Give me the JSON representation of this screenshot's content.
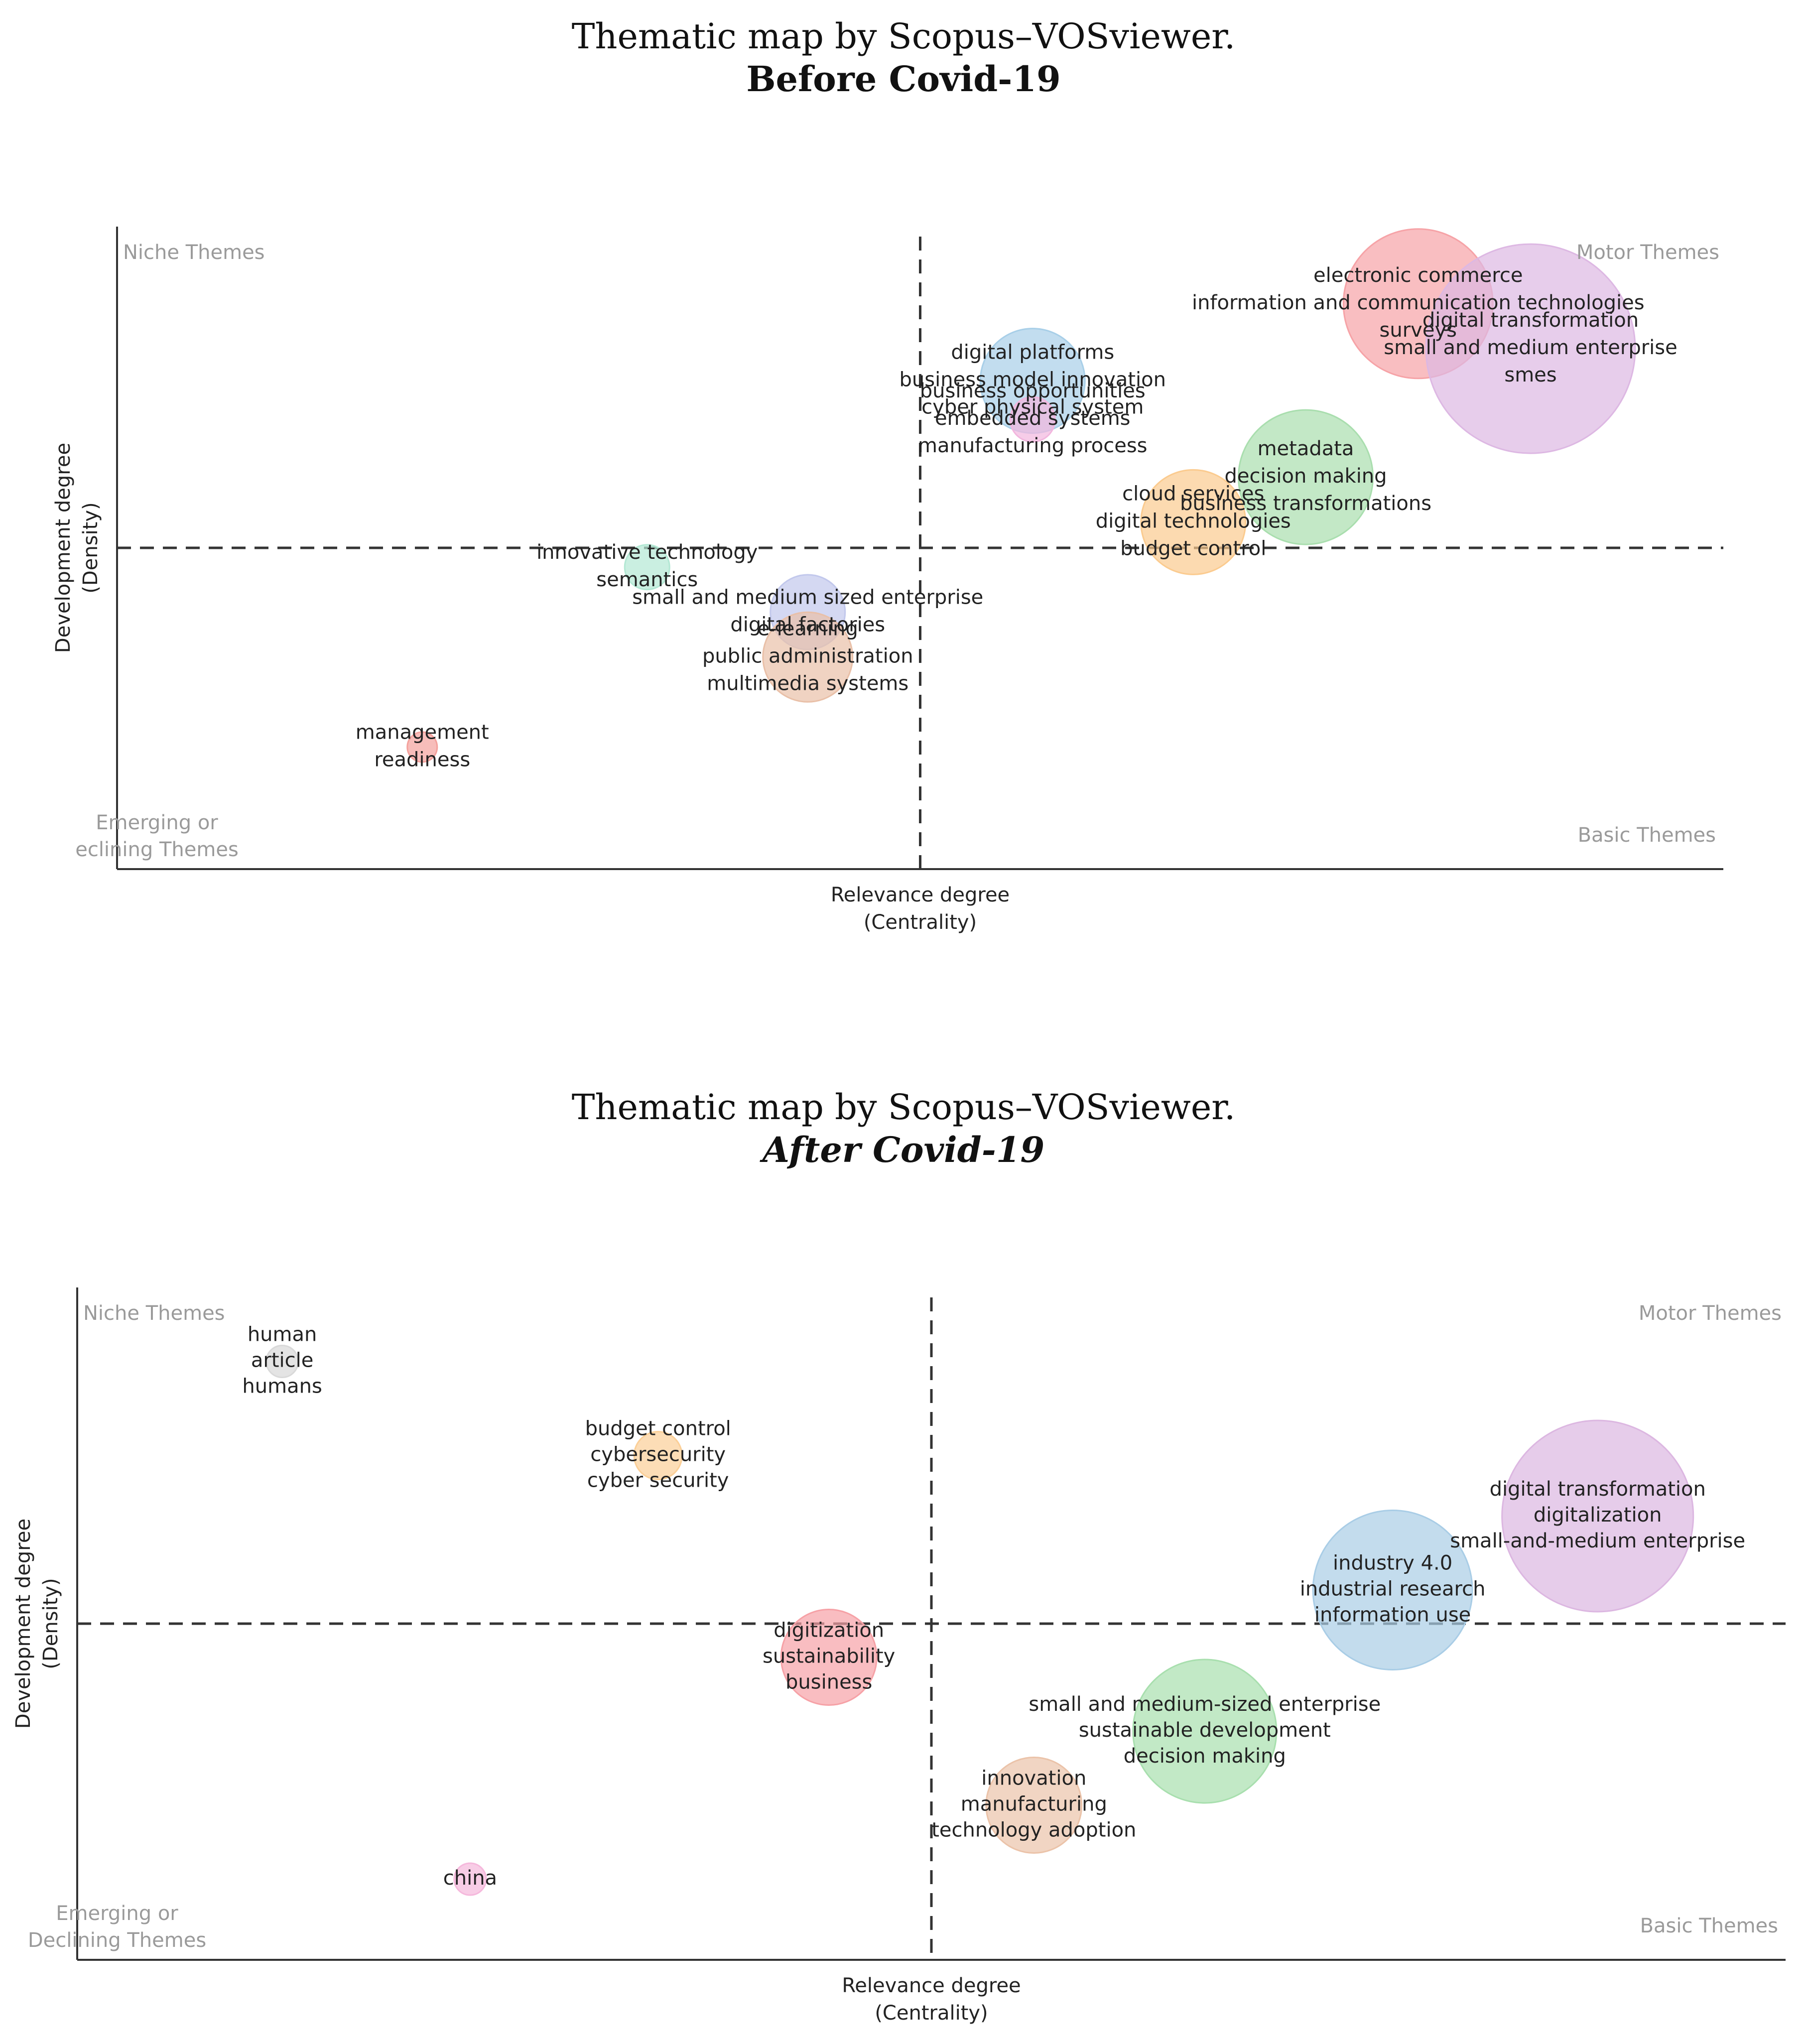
{
  "chart_data": [
    {
      "type": "scatter",
      "title": "Thematic map by Scopus–VOSviewer.",
      "subtitle": "Before Covid-19",
      "xlabel": [
        "Relevance degree",
        "(Centrality)"
      ],
      "ylabel": [
        "Development degree",
        "(Density)"
      ],
      "xlim": [
        0,
        100
      ],
      "ylim": [
        0,
        100
      ],
      "quadrant_split": {
        "x": 50,
        "y": 50
      },
      "quadrant_labels": {
        "top_left": [
          "Niche Themes"
        ],
        "top_right": [
          "Motor Themes"
        ],
        "bottom_left": [
          "Emerging or",
          "eclining Themes"
        ],
        "bottom_right": [
          "Basic Themes"
        ]
      },
      "clusters": [
        {
          "x": 81,
          "y": 88,
          "size": 10,
          "color": "#f6a3a7",
          "labels": [
            "electronic commerce",
            "information and communication technologies",
            "surveys"
          ]
        },
        {
          "x": 88,
          "y": 81,
          "size": 14,
          "color": "#ddb8e3",
          "labels": [
            "digital transformation",
            "small and medium enterprise",
            "smes"
          ]
        },
        {
          "x": 57,
          "y": 76,
          "size": 7,
          "color": "#a8cfe8",
          "labels": [
            "digital platforms",
            "business model innovation",
            "cyber physical system"
          ]
        },
        {
          "x": 57,
          "y": 70,
          "size": 3,
          "color": "#f2b6de",
          "labels": [
            "business opportunities",
            "embedded systems",
            "manufacturing process"
          ]
        },
        {
          "x": 74,
          "y": 61,
          "size": 9,
          "color": "#a9deae",
          "labels": [
            "metadata",
            "decision making",
            "business transformations"
          ]
        },
        {
          "x": 67,
          "y": 54,
          "size": 7,
          "color": "#fbcb8f",
          "labels": [
            "cloud services",
            "digital technologies",
            "budget control"
          ]
        },
        {
          "x": 33,
          "y": 47,
          "size": 3,
          "color": "#b3e8d4",
          "labels": [
            "innovative technology",
            "semantics"
          ]
        },
        {
          "x": 43,
          "y": 40,
          "size": 5,
          "color": "#c2c8ec",
          "labels": [
            "small and medium sized enterprise",
            "digital factories"
          ]
        },
        {
          "x": 43,
          "y": 33,
          "size": 6,
          "color": "#e9c0a8",
          "labels": [
            "e-learning",
            "public administration",
            "multimedia systems"
          ]
        },
        {
          "x": 19,
          "y": 19,
          "size": 2,
          "color": "#f4a19c",
          "labels": [
            "management",
            "readiness"
          ]
        }
      ]
    },
    {
      "type": "scatter",
      "title": "Thematic map by Scopus–VOSviewer.",
      "subtitle": "After Covid-19",
      "xlabel": [
        "Relevance degree",
        "(Centrality)"
      ],
      "ylabel": [
        "Development degree",
        "(Density)"
      ],
      "xlim": [
        0,
        100
      ],
      "ylim": [
        0,
        100
      ],
      "quadrant_split": {
        "x": 50,
        "y": 50
      },
      "quadrant_labels": {
        "top_left": [
          "Niche Themes"
        ],
        "top_right": [
          "Motor Themes"
        ],
        "bottom_left": [
          "Emerging or",
          "Declining Themes"
        ],
        "bottom_right": [
          "Basic Themes"
        ]
      },
      "clusters": [
        {
          "x": 12,
          "y": 89,
          "size": 2,
          "color": "#d9d9d9",
          "labels": [
            "human",
            "article",
            "humans"
          ]
        },
        {
          "x": 34,
          "y": 75,
          "size": 3,
          "color": "#fbcf97",
          "labels": [
            "budget control",
            "cybersecurity",
            "cyber security"
          ]
        },
        {
          "x": 44,
          "y": 45,
          "size": 6,
          "color": "#f6a1a6",
          "labels": [
            "digitization",
            "sustainability",
            "business"
          ]
        },
        {
          "x": 89,
          "y": 66,
          "size": 12,
          "color": "#dcb7e1",
          "labels": [
            "digital transformation",
            "digitalization",
            "small-and-medium enterprise"
          ]
        },
        {
          "x": 77,
          "y": 55,
          "size": 10,
          "color": "#a9cde6",
          "labels": [
            "industry 4.0",
            "industrial research",
            "information use"
          ]
        },
        {
          "x": 66,
          "y": 34,
          "size": 9,
          "color": "#a8dfae",
          "labels": [
            "small and medium-sized enterprise",
            "sustainable development",
            "decision making"
          ]
        },
        {
          "x": 56,
          "y": 23,
          "size": 6,
          "color": "#ebc3a9",
          "labels": [
            "innovation",
            "manufacturing",
            "technology adoption"
          ]
        },
        {
          "x": 23,
          "y": 12,
          "size": 2,
          "color": "#f5b8dc",
          "labels": [
            "china"
          ]
        }
      ]
    }
  ]
}
